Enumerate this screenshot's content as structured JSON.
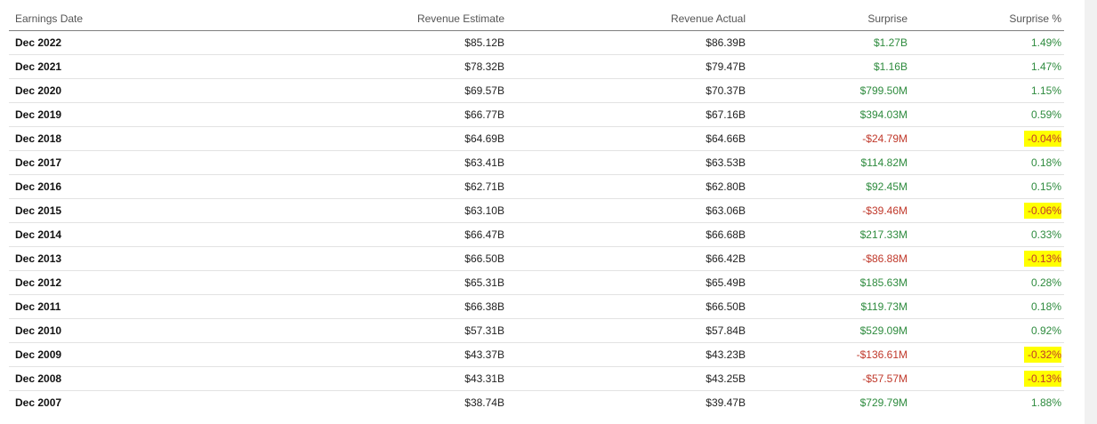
{
  "table": {
    "headers": [
      "Earnings Date",
      "Revenue Estimate",
      "Revenue Actual",
      "Surprise",
      "Surprise %"
    ],
    "rows": [
      {
        "date": "Dec 2022",
        "estimate": "$85.12B",
        "actual": "$86.39B",
        "surprise": "$1.27B",
        "surprise_pct": "1.49%",
        "direction": "positive",
        "highlighted": false
      },
      {
        "date": "Dec 2021",
        "estimate": "$78.32B",
        "actual": "$79.47B",
        "surprise": "$1.16B",
        "surprise_pct": "1.47%",
        "direction": "positive",
        "highlighted": false
      },
      {
        "date": "Dec 2020",
        "estimate": "$69.57B",
        "actual": "$70.37B",
        "surprise": "$799.50M",
        "surprise_pct": "1.15%",
        "direction": "positive",
        "highlighted": false
      },
      {
        "date": "Dec 2019",
        "estimate": "$66.77B",
        "actual": "$67.16B",
        "surprise": "$394.03M",
        "surprise_pct": "0.59%",
        "direction": "positive",
        "highlighted": false
      },
      {
        "date": "Dec 2018",
        "estimate": "$64.69B",
        "actual": "$64.66B",
        "surprise": "-$24.79M",
        "surprise_pct": "-0.04%",
        "direction": "negative",
        "highlighted": true
      },
      {
        "date": "Dec 2017",
        "estimate": "$63.41B",
        "actual": "$63.53B",
        "surprise": "$114.82M",
        "surprise_pct": "0.18%",
        "direction": "positive",
        "highlighted": false
      },
      {
        "date": "Dec 2016",
        "estimate": "$62.71B",
        "actual": "$62.80B",
        "surprise": "$92.45M",
        "surprise_pct": "0.15%",
        "direction": "positive",
        "highlighted": false
      },
      {
        "date": "Dec 2015",
        "estimate": "$63.10B",
        "actual": "$63.06B",
        "surprise": "-$39.46M",
        "surprise_pct": "-0.06%",
        "direction": "negative",
        "highlighted": true
      },
      {
        "date": "Dec 2014",
        "estimate": "$66.47B",
        "actual": "$66.68B",
        "surprise": "$217.33M",
        "surprise_pct": "0.33%",
        "direction": "positive",
        "highlighted": false
      },
      {
        "date": "Dec 2013",
        "estimate": "$66.50B",
        "actual": "$66.42B",
        "surprise": "-$86.88M",
        "surprise_pct": "-0.13%",
        "direction": "negative",
        "highlighted": true
      },
      {
        "date": "Dec 2012",
        "estimate": "$65.31B",
        "actual": "$65.49B",
        "surprise": "$185.63M",
        "surprise_pct": "0.28%",
        "direction": "positive",
        "highlighted": false
      },
      {
        "date": "Dec 2011",
        "estimate": "$66.38B",
        "actual": "$66.50B",
        "surprise": "$119.73M",
        "surprise_pct": "0.18%",
        "direction": "positive",
        "highlighted": false
      },
      {
        "date": "Dec 2010",
        "estimate": "$57.31B",
        "actual": "$57.84B",
        "surprise": "$529.09M",
        "surprise_pct": "0.92%",
        "direction": "positive",
        "highlighted": false
      },
      {
        "date": "Dec 2009",
        "estimate": "$43.37B",
        "actual": "$43.23B",
        "surprise": "-$136.61M",
        "surprise_pct": "-0.32%",
        "direction": "negative",
        "highlighted": true
      },
      {
        "date": "Dec 2008",
        "estimate": "$43.31B",
        "actual": "$43.25B",
        "surprise": "-$57.57M",
        "surprise_pct": "-0.13%",
        "direction": "negative",
        "highlighted": true
      },
      {
        "date": "Dec 2007",
        "estimate": "$38.74B",
        "actual": "$39.47B",
        "surprise": "$729.79M",
        "surprise_pct": "1.88%",
        "direction": "positive",
        "highlighted": false
      }
    ]
  },
  "colors": {
    "positive": "#2e8b3e",
    "negative": "#c0392b",
    "highlight": "#ffff00"
  }
}
